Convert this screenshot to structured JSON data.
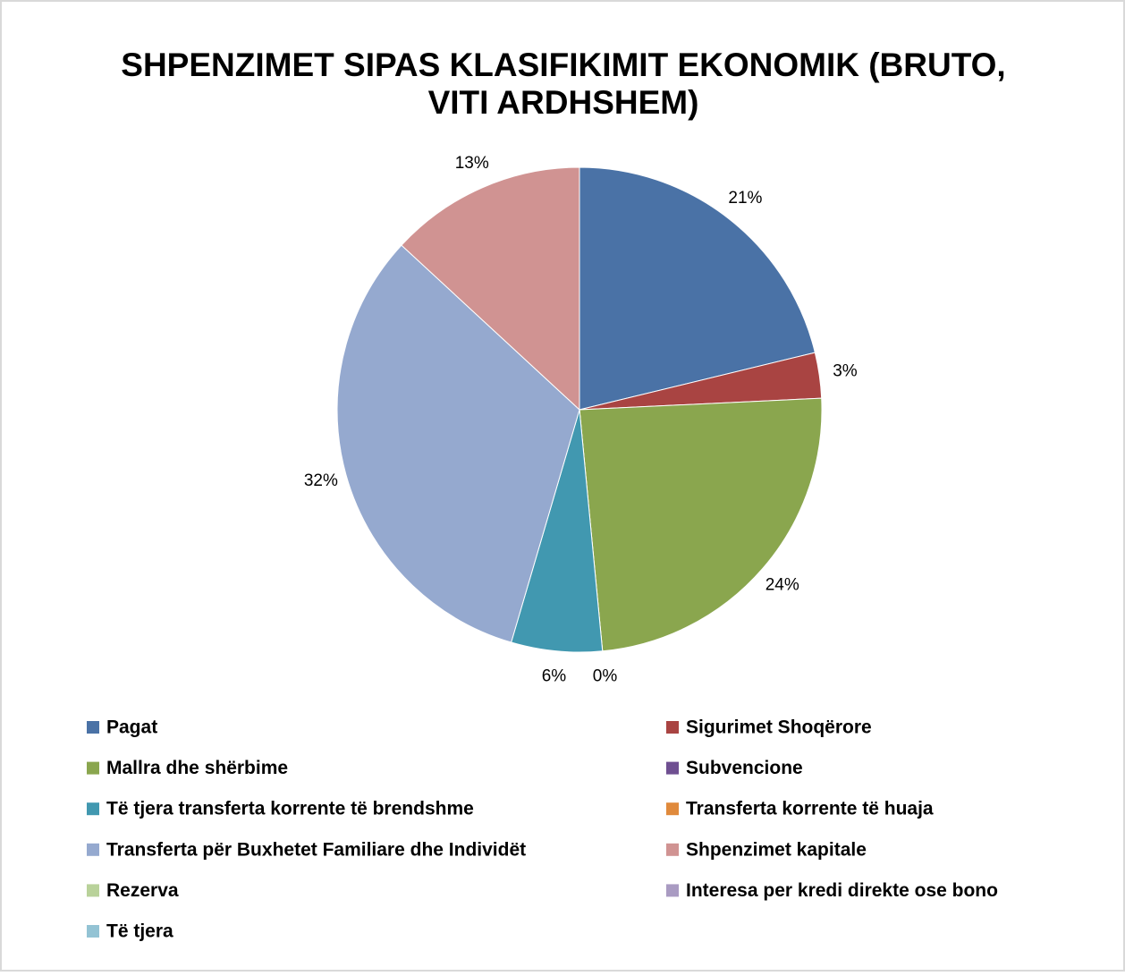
{
  "chart_data": {
    "type": "pie",
    "title": [
      "SHPENZIMET SIPAS KLASIFIKIMIT EKONOMIK (BRUTO,",
      "VITI ARDHSHEM)"
    ],
    "categories": [
      "Pagat",
      "Sigurimet Shoqërore",
      "Mallra dhe shërbime",
      "Subvencione",
      "Të tjera transferta korrente të brendshme",
      "Transferta korrente të huaja",
      "Transferta për Buxhetet Familiare dhe Individët",
      "Shpenzimet kapitale",
      "Rezerva",
      "Interesa per kredi direkte ose bono",
      "Të tjera"
    ],
    "values": [
      21,
      3,
      24,
      0,
      6,
      null,
      32,
      13,
      null,
      null,
      null
    ],
    "value_labels": [
      "21%",
      "3%",
      "24%",
      "0%",
      "6%",
      null,
      "32%",
      "13%",
      null,
      null,
      null
    ],
    "colors": [
      "#4a72a6",
      "#a94442",
      "#8aa64e",
      "#6f4f91",
      "#4198b0",
      "#e08a3c",
      "#95a9cf",
      "#d09392",
      "#b9d29a",
      "#a99bc2",
      "#93c3d4"
    ],
    "legend": "bottom"
  }
}
